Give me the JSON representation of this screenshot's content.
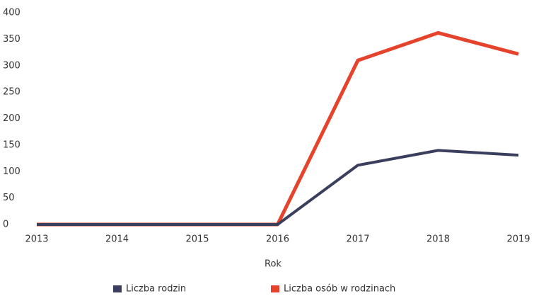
{
  "chart_data": {
    "type": "line",
    "x": [
      2013,
      2014,
      2015,
      2016,
      2017,
      2018,
      2019
    ],
    "xlim": [
      2013,
      2019
    ],
    "xticks": [
      2013,
      2014,
      2015,
      2016,
      2017,
      2018,
      2019
    ],
    "xlabel": "Rok",
    "ylim": [
      0,
      400
    ],
    "yticks": [
      0,
      50,
      100,
      150,
      200,
      250,
      300,
      350,
      400
    ],
    "grid": false,
    "legend": "bottom",
    "series": [
      {
        "name": "Liczba rodzin",
        "color": "#3b3f5e",
        "values": [
          0,
          0,
          0,
          0,
          112,
          140,
          131
        ]
      },
      {
        "name": "Liczba osób w rodzinach",
        "color": "#e5432b",
        "values": [
          0,
          0,
          0,
          0,
          310,
          362,
          322
        ]
      }
    ]
  }
}
